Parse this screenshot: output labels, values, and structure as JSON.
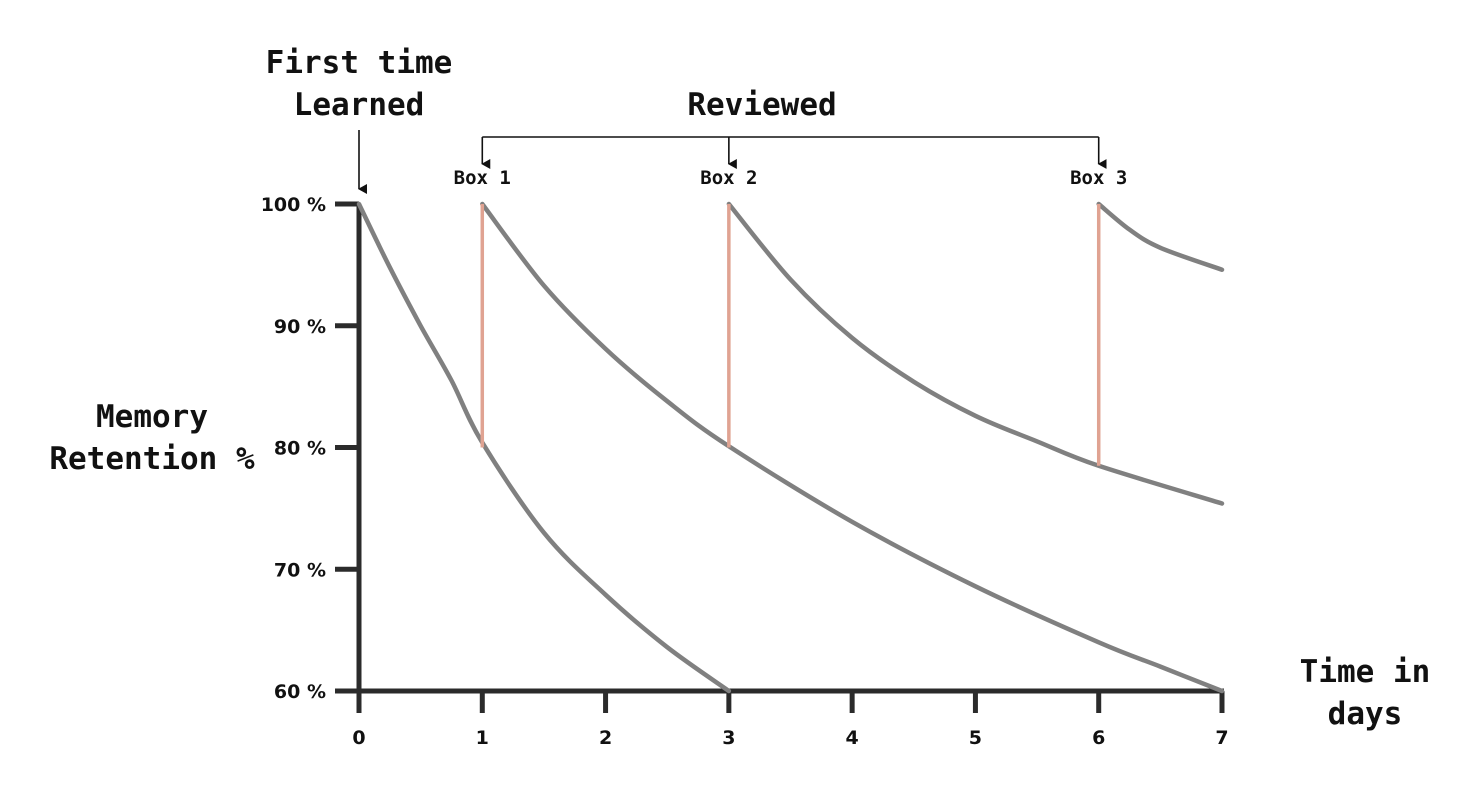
{
  "chart_data": {
    "type": "line",
    "xlabel": [
      "Time in",
      "days"
    ],
    "ylabel": [
      "Memory",
      "Retention %"
    ],
    "xlim": [
      0,
      7
    ],
    "ylim": [
      60,
      100
    ],
    "x_ticks": [
      0,
      1,
      2,
      3,
      4,
      5,
      6,
      7
    ],
    "x_tick_labels": [
      "0",
      "1",
      "2",
      "3",
      "4",
      "5",
      "6",
      "7"
    ],
    "y_ticks": [
      100,
      90,
      80,
      70,
      60
    ],
    "y_tick_labels": [
      "100 %",
      "90 %",
      "80 %",
      "70 %",
      "60 %"
    ],
    "grid": false,
    "colors": {
      "curve": "#808080",
      "review_line": "#e0a392",
      "axis": "#2b2b2b"
    },
    "series": [
      {
        "x": [
          0,
          0.25,
          0.5,
          0.75,
          1,
          1.5,
          2,
          2.5,
          3
        ],
        "y": [
          100,
          94.8,
          90.0,
          85.5,
          80.4,
          73.0,
          67.9,
          63.6,
          60
        ]
      },
      {
        "x": [
          1,
          1.5,
          2,
          2.5,
          3,
          4,
          5,
          6,
          6.5,
          7
        ],
        "y": [
          100,
          93.3,
          88.1,
          83.8,
          80.1,
          73.9,
          68.6,
          64.0,
          62.0,
          60
        ]
      },
      {
        "x": [
          3,
          3.5,
          4,
          4.5,
          5,
          5.5,
          6,
          7
        ],
        "y": [
          100,
          93.8,
          89.0,
          85.4,
          82.6,
          80.5,
          78.5,
          75.4
        ]
      },
      {
        "x": [
          6,
          6.25,
          6.5,
          7
        ],
        "y": [
          100,
          97.9,
          96.4,
          94.6
        ]
      }
    ],
    "review_lines": [
      {
        "x": 1,
        "from": 80,
        "to": 100
      },
      {
        "x": 3,
        "from": 80,
        "to": 100
      },
      {
        "x": 6,
        "from": 78.5,
        "to": 100
      }
    ],
    "annotations": {
      "first_learned": {
        "lines": [
          "First time",
          "Learned"
        ],
        "x": 0
      },
      "reviewed": {
        "label": "Reviewed",
        "x": [
          1,
          3,
          6
        ]
      },
      "boxes": [
        {
          "label": "Box 1",
          "x": 1
        },
        {
          "label": "Box 2",
          "x": 3
        },
        {
          "label": "Box 3",
          "x": 6
        }
      ]
    }
  }
}
